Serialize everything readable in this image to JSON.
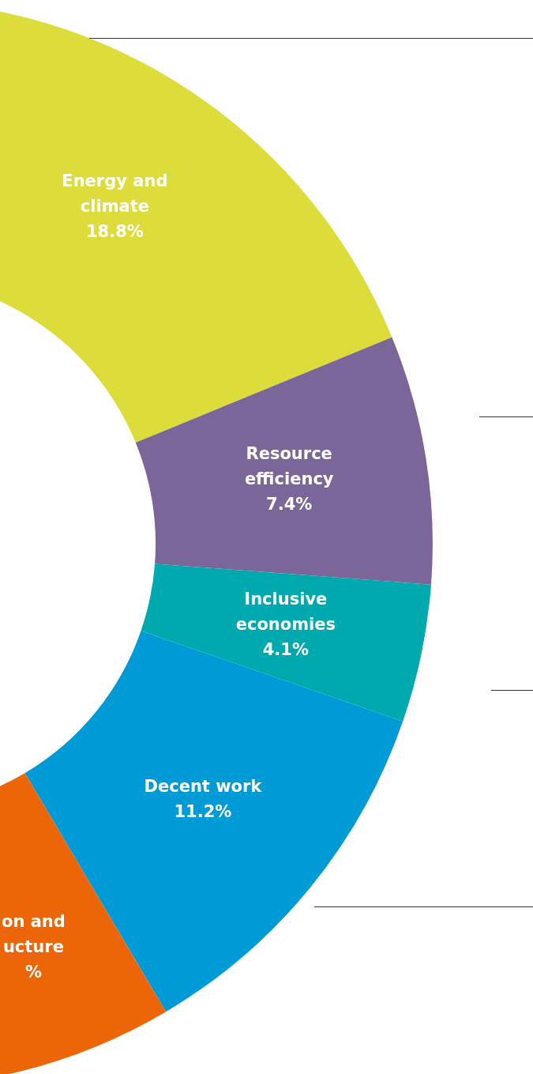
{
  "chart_data": {
    "type": "donut",
    "categories": [
      "Energy and climate",
      "Resource efficiency",
      "Inclusive economies",
      "Decent work",
      "on and ucture"
    ],
    "values": [
      18.8,
      7.4,
      4.1,
      11.2,
      18.6
    ],
    "colors": [
      "#dcdc3a",
      "#7a6699",
      "#00a9ad",
      "#009bd6",
      "#ec6608"
    ],
    "value_labels": [
      "18.8%",
      "7.4%",
      "4.1%",
      "11.2%",
      "%"
    ],
    "legend": false
  }
}
